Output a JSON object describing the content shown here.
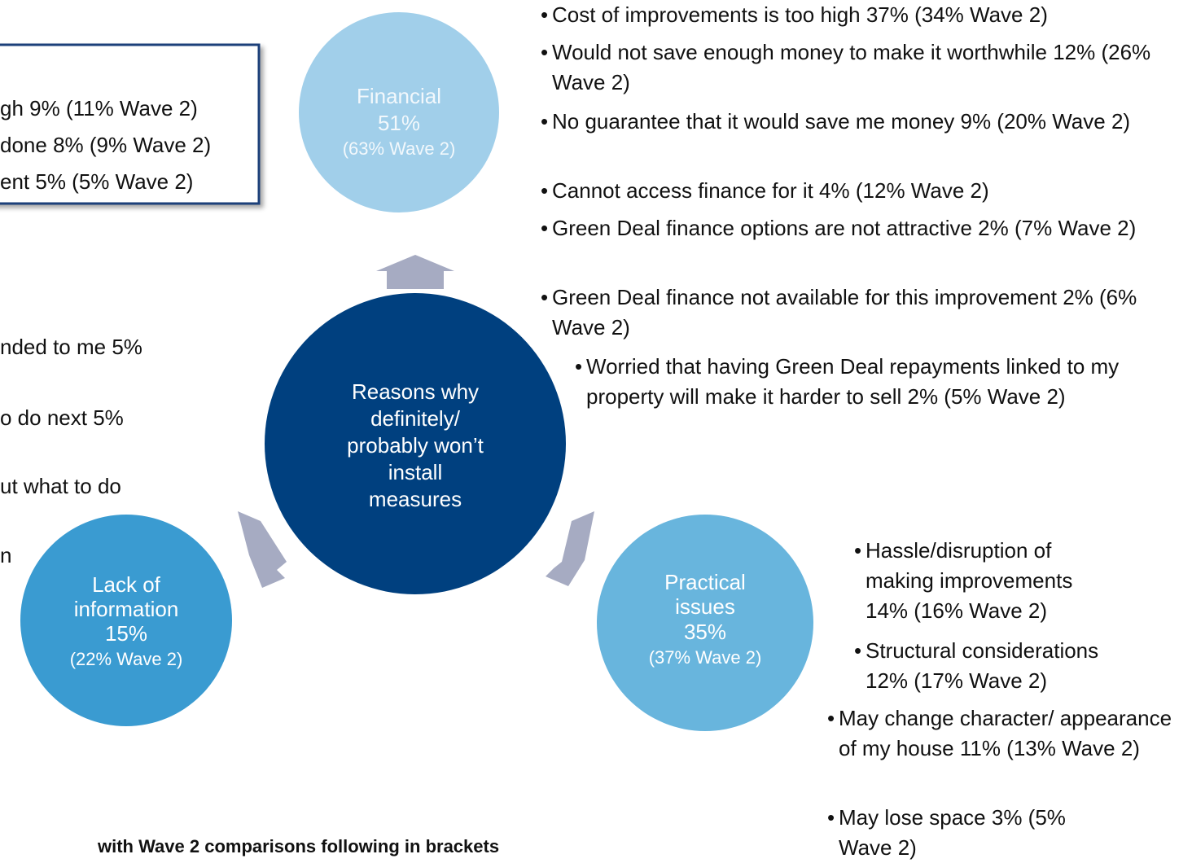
{
  "center": {
    "lines": [
      "Reasons why",
      "definitely/",
      "probably won’t",
      "install",
      "measures"
    ]
  },
  "financial": {
    "label": "Financial",
    "value": "51%",
    "wave2": "(63% Wave 2)",
    "items": [
      "Cost of improvements is too high  37% (34% Wave 2)",
      "Would not save enough money to make it worthwhile 12% (26% Wave 2)",
      "No guarantee that it would save me money 9% (20% Wave 2)",
      "Cannot access finance for it 4% (12% Wave 2)",
      "Green Deal finance options are not attractive 2% (7% Wave 2)",
      "Green Deal finance not available for this improvement 2% (6% Wave 2)",
      "Worried that having Green Deal repayments linked to my property will make it harder to sell 2% (5% Wave 2)"
    ]
  },
  "practical": {
    "label": "Practical",
    "label2": "issues",
    "value": "35%",
    "wave2": "(37% Wave 2)",
    "items": [
      "Hassle/disruption of making improvements 14% (16% Wave 2)",
      "Structural considerations 12% (17% Wave 2)",
      "May change character/ appearance of my house 11% (13% Wave 2)",
      "May lose space 3% (5% Wave 2)"
    ]
  },
  "information": {
    "label": "Lack of",
    "label2": "information",
    "value": "15%",
    "wave2": "(22% Wave 2)",
    "items": [
      "nded to me 5%",
      "o do next 5%",
      "ut what to do",
      "n"
    ]
  },
  "box": {
    "items": [
      "gh 9% (11% Wave 2)",
      "done 8% (9% Wave 2)",
      "ent 5% (5% Wave 2)"
    ]
  },
  "footnote": "with Wave 2 comparisons following in brackets"
}
